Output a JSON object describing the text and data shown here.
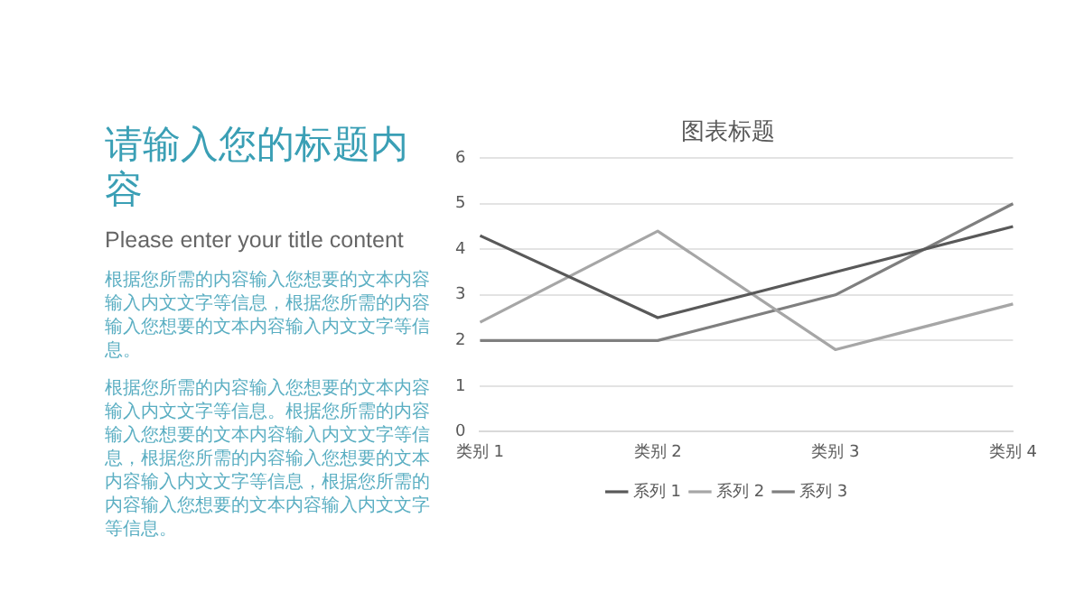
{
  "chart_data": {
    "type": "line",
    "title": "图表标题",
    "categories": [
      "类别 1",
      "类别 2",
      "类别 3",
      "类别 4"
    ],
    "series": [
      {
        "name": "系列 1",
        "color": "#595959",
        "values": [
          4.3,
          2.5,
          3.5,
          4.5
        ]
      },
      {
        "name": "系列 2",
        "color": "#a6a6a6",
        "values": [
          2.4,
          4.4,
          1.8,
          2.8
        ]
      },
      {
        "name": "系列 3",
        "color": "#7f7f7f",
        "values": [
          2,
          2,
          3,
          5
        ]
      }
    ],
    "ylim": [
      0,
      6
    ],
    "yticks": [
      0,
      1,
      2,
      3,
      4,
      5,
      6
    ],
    "grid": "y",
    "legend": "bottom",
    "marker": "none",
    "line_style": "solid",
    "annotations": [
      "请输入您的标题内容",
      "Please enter your title content",
      "根据您所需的内容输入您想要的文本内容输入内文文字等信息，根据您所需的内容输入您想要的文本内容输入内文文字等信息。",
      "根据您所需的内容输入您想要的文本内容输入内文文字等信息。根据您所需的内容输入您想要的文本内容输入内文文字等信息，根据您所需的内容输入您想要的文本内容输入内文文字等信息，根据您所需的内容输入您想要的文本内容输入内文文字等信息。"
    ]
  }
}
